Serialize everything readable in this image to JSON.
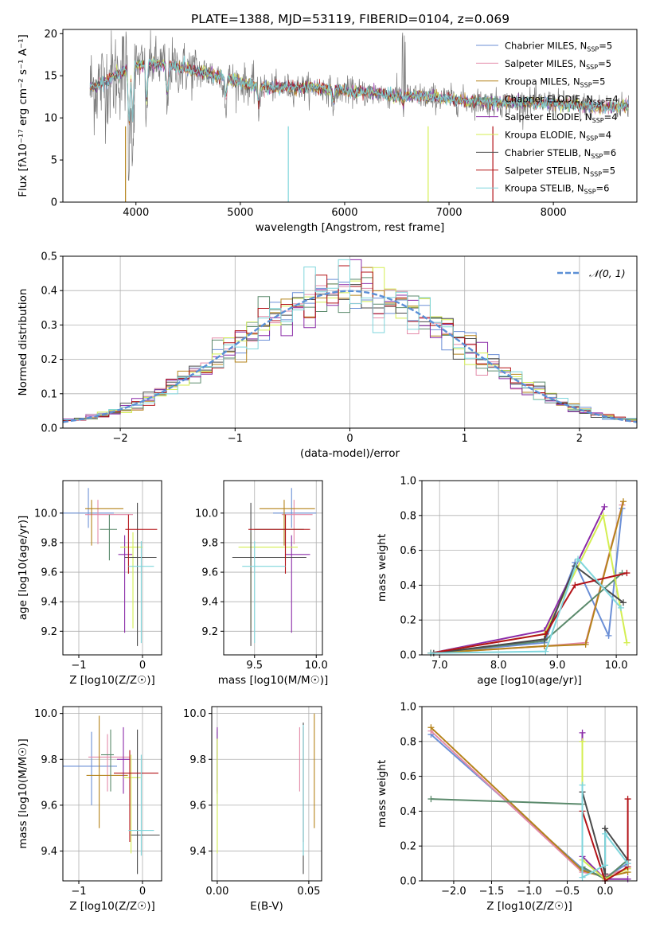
{
  "figure": {
    "title": "PLATE=1388, MJD=53119, FIBERID=0104, z=0.069"
  },
  "legend_models": [
    {
      "label": "Chabrier MILES, N",
      "n": "5",
      "color": "#6b8fd6"
    },
    {
      "label": "Salpeter MILES, N",
      "n": "5",
      "color": "#e38aa8"
    },
    {
      "label": "Kroupa MILES, N",
      "n": "5",
      "color": "#b5831a"
    },
    {
      "label": "Chabrier ELODIE, N",
      "n": "4",
      "color": "#5b8a6c"
    },
    {
      "label": "Salpeter ELODIE, N",
      "n": "4",
      "color": "#8b2ba8"
    },
    {
      "label": "Kroupa ELODIE, N",
      "n": "4",
      "color": "#d4ee52"
    },
    {
      "label": "Chabrier STELIB, N",
      "n": "6",
      "color": "#4a4a4a"
    },
    {
      "label": "Salpeter STELIB, N",
      "n": "5",
      "color": "#b31217"
    },
    {
      "label": "Kroupa STELIB, N",
      "n": "6",
      "color": "#7fd6dc"
    }
  ],
  "legend_subscript": "SSP",
  "normal_legend": "𝒩(0, 1)",
  "chart_data": [
    {
      "id": "spectrum",
      "type": "line",
      "title": "PLATE=1388, MJD=53119, FIBERID=0104, z=0.069",
      "xlabel": "wavelength [Angstrom, rest frame]",
      "ylabel": "Flux [fλ10⁻¹⁷ erg cm⁻² s⁻¹ A⁻¹]",
      "xlim": [
        3300,
        8800
      ],
      "ylim": [
        0,
        20.5
      ],
      "xticks": [
        4000,
        5000,
        6000,
        7000,
        8000
      ],
      "yticks": [
        0,
        5,
        10,
        15,
        20
      ],
      "continuum": [
        [
          3560,
          13.5
        ],
        [
          3700,
          14.2
        ],
        [
          3800,
          15
        ],
        [
          3950,
          16
        ],
        [
          4100,
          16.5
        ],
        [
          4300,
          16.2
        ],
        [
          4500,
          15.8
        ],
        [
          4700,
          15.3
        ],
        [
          4900,
          14.6
        ],
        [
          5100,
          13.9
        ],
        [
          5300,
          13.6
        ],
        [
          5500,
          13.6
        ],
        [
          5700,
          13.6
        ],
        [
          5900,
          13.3
        ],
        [
          6100,
          13.1
        ],
        [
          6300,
          12.9
        ],
        [
          6500,
          12.7
        ],
        [
          6700,
          12.6
        ],
        [
          6900,
          12.4
        ],
        [
          7100,
          12.1
        ],
        [
          7300,
          11.9
        ],
        [
          7500,
          11.7
        ],
        [
          7700,
          11.8
        ],
        [
          7900,
          11.8
        ],
        [
          8100,
          11.6
        ],
        [
          8300,
          11.4
        ],
        [
          8500,
          11.3
        ],
        [
          8700,
          11.4
        ]
      ],
      "absorption_features": [
        [
          3934,
          4.5
        ],
        [
          3969,
          6
        ],
        [
          4102,
          9
        ],
        [
          4300,
          10.5
        ],
        [
          4861,
          11
        ],
        [
          5175,
          10.5
        ],
        [
          5893,
          11
        ],
        [
          6563,
          11
        ]
      ],
      "spikes": [
        [
          3900,
          0
        ],
        [
          5460,
          0
        ],
        [
          6800,
          0
        ],
        [
          7420,
          0
        ]
      ]
    },
    {
      "id": "residuals",
      "type": "step",
      "xlabel": "(data-model)/error",
      "ylabel": "Normed distribution",
      "xlim": [
        -2.5,
        2.5
      ],
      "ylim": [
        0,
        0.5
      ],
      "xticks": [
        -2,
        -1,
        0,
        1,
        2
      ],
      "yticks": [
        0.0,
        0.1,
        0.2,
        0.3,
        0.4,
        0.5
      ],
      "bin_width": 0.1,
      "normal": {
        "mean": 0,
        "sigma": 1,
        "name": "𝒩(0, 1)"
      }
    },
    {
      "id": "age_vs_Z",
      "type": "errorbar",
      "xlabel": "Z [log10(Z/Z☉)]",
      "ylabel": "age  [log10(age/yr)]",
      "xlim": [
        -1.25,
        0.3
      ],
      "ylim": [
        9.04,
        10.22
      ],
      "xticks": [
        -1,
        0
      ],
      "yticks": [
        9.2,
        9.4,
        9.6,
        9.8,
        10.0
      ],
      "points": [
        {
          "model": 0,
          "x": -0.85,
          "y": 10.0,
          "xerr": [
            0.45,
            0.4
          ],
          "yerr": [
            0.1,
            0.17
          ]
        },
        {
          "model": 1,
          "x": -0.7,
          "y": 9.99,
          "xerr": [
            0.2,
            0.55
          ],
          "yerr": [
            0.2,
            0.1
          ]
        },
        {
          "model": 2,
          "x": -0.8,
          "y": 10.03,
          "xerr": [
            0.1,
            0.5
          ],
          "yerr": [
            0.25,
            0.06
          ]
        },
        {
          "model": 3,
          "x": -0.52,
          "y": 9.89,
          "xerr": [
            0.15,
            0.12
          ],
          "yerr": [
            0.21,
            0.1
          ]
        },
        {
          "model": 4,
          "x": -0.28,
          "y": 9.72,
          "xerr": [
            0.1,
            0.12
          ],
          "yerr": [
            0.53,
            0.13
          ]
        },
        {
          "model": 5,
          "x": -0.15,
          "y": 9.77,
          "xerr": [
            0.2,
            0.15
          ],
          "yerr": [
            0.55,
            0.1
          ]
        },
        {
          "model": 6,
          "x": -0.08,
          "y": 9.7,
          "xerr": [
            0.2,
            0.3
          ],
          "yerr": [
            0.6,
            0.37
          ]
        },
        {
          "model": 7,
          "x": -0.22,
          "y": 9.89,
          "xerr": [
            0.05,
            0.45
          ],
          "yerr": [
            0.3,
            0.1
          ]
        },
        {
          "model": 8,
          "x": -0.02,
          "y": 9.64,
          "xerr": [
            0.2,
            0.2
          ],
          "yerr": [
            0.52,
            0.17
          ]
        }
      ]
    },
    {
      "id": "age_vs_mass",
      "type": "errorbar",
      "xlabel": "mass [log10(M/M☉)]",
      "ylabel": "",
      "xlim": [
        9.25,
        10.05
      ],
      "ylim": [
        9.04,
        10.22
      ],
      "xticks": [
        9.5,
        10.0
      ],
      "yticks": [
        9.2,
        9.4,
        9.6,
        9.8,
        10.0
      ],
      "points": [
        {
          "model": 0,
          "x": 9.8,
          "y": 10.0,
          "xerr": [
            0.15,
            0.2
          ],
          "yerr": [
            0.1,
            0.17
          ]
        },
        {
          "model": 1,
          "x": 9.82,
          "y": 9.99,
          "xerr": [
            0.1,
            0.15
          ],
          "yerr": [
            0.2,
            0.1
          ]
        },
        {
          "model": 2,
          "x": 9.74,
          "y": 10.03,
          "xerr": [
            0.2,
            0.25
          ],
          "yerr": [
            0.25,
            0.06
          ]
        },
        {
          "model": 3,
          "x": 9.75,
          "y": 9.89,
          "xerr": [
            0.25,
            0.15
          ],
          "yerr": [
            0.21,
            0.1
          ]
        },
        {
          "model": 4,
          "x": 9.8,
          "y": 9.72,
          "xerr": [
            0.05,
            0.15
          ],
          "yerr": [
            0.53,
            0.13
          ]
        },
        {
          "model": 5,
          "x": 9.47,
          "y": 9.77,
          "xerr": [
            0.1,
            0.38
          ],
          "yerr": [
            0.55,
            0.1
          ]
        },
        {
          "model": 6,
          "x": 9.47,
          "y": 9.7,
          "xerr": [
            0.15,
            0.45
          ],
          "yerr": [
            0.6,
            0.37
          ]
        },
        {
          "model": 7,
          "x": 9.75,
          "y": 9.89,
          "xerr": [
            0.3,
            0.2
          ],
          "yerr": [
            0.3,
            0.1
          ]
        },
        {
          "model": 8,
          "x": 9.5,
          "y": 9.64,
          "xerr": [
            0.1,
            0.25
          ],
          "yerr": [
            0.52,
            0.17
          ]
        }
      ]
    },
    {
      "id": "weight_vs_age",
      "type": "line",
      "xlabel": "age  [log10(age/yr)]",
      "ylabel": "mass weight",
      "xlim": [
        6.7,
        10.35
      ],
      "ylim": [
        0,
        1.0
      ],
      "xticks": [
        7,
        8,
        9,
        10
      ],
      "yticks": [
        0.0,
        0.2,
        0.4,
        0.6,
        0.8,
        1.0
      ],
      "series": [
        {
          "model": 0,
          "x": [
            6.85,
            8.78,
            9.3,
            9.87,
            10.1
          ],
          "y": [
            0.01,
            0.07,
            0.53,
            0.11,
            0.84
          ]
        },
        {
          "model": 1,
          "x": [
            6.85,
            8.78,
            9.48,
            10.1
          ],
          "y": [
            0.01,
            0.05,
            0.07,
            0.86
          ]
        },
        {
          "model": 2,
          "x": [
            6.85,
            8.78,
            9.48,
            10.12
          ],
          "y": [
            0.01,
            0.05,
            0.06,
            0.88
          ]
        },
        {
          "model": 3,
          "x": [
            6.85,
            8.78,
            10.1
          ],
          "y": [
            0.01,
            0.08,
            0.47
          ]
        },
        {
          "model": 4,
          "x": [
            6.85,
            8.78,
            9.8
          ],
          "y": [
            0.01,
            0.14,
            0.85
          ]
        },
        {
          "model": 5,
          "x": [
            6.85,
            8.78,
            9.78,
            10.18
          ],
          "y": [
            0.01,
            0.12,
            0.8,
            0.07
          ]
        },
        {
          "model": 6,
          "x": [
            6.9,
            8.78,
            9.3,
            10.12
          ],
          "y": [
            0.01,
            0.09,
            0.51,
            0.3
          ]
        },
        {
          "model": 7,
          "x": [
            6.85,
            8.8,
            9.3,
            10.18
          ],
          "y": [
            0.01,
            0.12,
            0.4,
            0.47
          ]
        },
        {
          "model": 8,
          "x": [
            6.85,
            8.8,
            9.35,
            10.08
          ],
          "y": [
            0.01,
            0.02,
            0.55,
            0.27
          ]
        }
      ]
    },
    {
      "id": "mass_vs_Z",
      "type": "errorbar",
      "xlabel": "Z [log10(Z/Z☉)]",
      "ylabel": "mass [log10(M/M☉)]",
      "xlim": [
        -1.25,
        0.3
      ],
      "ylim": [
        9.27,
        10.03
      ],
      "xticks": [
        -1,
        0
      ],
      "yticks": [
        9.4,
        9.6,
        9.8,
        10.0
      ],
      "points": [
        {
          "model": 0,
          "x": -0.8,
          "y": 9.77,
          "xerr": [
            0.45,
            0.4
          ],
          "yerr": [
            0.17,
            0.15
          ]
        },
        {
          "model": 1,
          "x": -0.55,
          "y": 9.81,
          "xerr": [
            0.3,
            0.35
          ],
          "yerr": [
            0.15,
            0.1
          ]
        },
        {
          "model": 2,
          "x": -0.68,
          "y": 9.73,
          "xerr": [
            0.2,
            0.45
          ],
          "yerr": [
            0.23,
            0.26
          ]
        },
        {
          "model": 3,
          "x": -0.5,
          "y": 9.82,
          "xerr": [
            0.15,
            0.05
          ],
          "yerr": [
            0.16,
            0.11
          ]
        },
        {
          "model": 4,
          "x": -0.3,
          "y": 9.8,
          "xerr": [
            0.1,
            0.1
          ],
          "yerr": [
            0.15,
            0.14
          ]
        },
        {
          "model": 5,
          "x": -0.18,
          "y": 9.72,
          "xerr": [
            0.12,
            0.15
          ],
          "yerr": [
            0.33,
            0.1
          ]
        },
        {
          "model": 6,
          "x": -0.08,
          "y": 9.47,
          "xerr": [
            0.1,
            0.35
          ],
          "yerr": [
            0.17,
            0.46
          ]
        },
        {
          "model": 7,
          "x": -0.2,
          "y": 9.74,
          "xerr": [
            0.25,
            0.45
          ],
          "yerr": [
            0.3,
            0.1
          ]
        },
        {
          "model": 8,
          "x": -0.02,
          "y": 9.49,
          "xerr": [
            0.2,
            0.2
          ],
          "yerr": [
            0.11,
            0.33
          ]
        }
      ]
    },
    {
      "id": "mass_vs_ebv",
      "type": "errorbar",
      "xlabel": "E(B-V)",
      "ylabel": "",
      "xlim": [
        -0.003,
        0.057
      ],
      "ylim": [
        9.27,
        10.03
      ],
      "xticks": [
        0.0,
        0.05
      ],
      "yticks": [
        9.4,
        9.6,
        9.8,
        10.0
      ],
      "points": [
        {
          "model": 0,
          "x": 0.0,
          "y": 9.77,
          "xerr": [
            0,
            0
          ],
          "yerr": [
            0.17,
            0.15
          ]
        },
        {
          "model": 1,
          "x": 0.045,
          "y": 9.81,
          "xerr": [
            0,
            0
          ],
          "yerr": [
            0.15,
            0.13
          ]
        },
        {
          "model": 2,
          "x": 0.053,
          "y": 9.73,
          "xerr": [
            0,
            0
          ],
          "yerr": [
            0.23,
            0.27
          ]
        },
        {
          "model": 3,
          "x": 0.0,
          "y": 9.82,
          "xerr": [
            0,
            0
          ],
          "yerr": [
            0.16,
            0.11
          ]
        },
        {
          "model": 4,
          "x": 0.0,
          "y": 9.8,
          "xerr": [
            0,
            0
          ],
          "yerr": [
            0.15,
            0.14
          ]
        },
        {
          "model": 5,
          "x": 0.0,
          "y": 9.72,
          "xerr": [
            0,
            0
          ],
          "yerr": [
            0.33,
            0.17
          ]
        },
        {
          "model": 6,
          "x": 0.047,
          "y": 9.47,
          "xerr": [
            0,
            0
          ],
          "yerr": [
            0.17,
            0.49
          ]
        },
        {
          "model": 7,
          "x": 0.047,
          "y": 9.74,
          "xerr": [
            0,
            0
          ],
          "yerr": [
            0.3,
            0.2
          ]
        },
        {
          "model": 8,
          "x": 0.047,
          "y": 9.49,
          "xerr": [
            0,
            0
          ],
          "yerr": [
            0.11,
            0.46
          ]
        }
      ]
    },
    {
      "id": "weight_vs_Z",
      "type": "line",
      "xlabel": "Z [log10(Z/Z☉)]",
      "ylabel": "mass weight",
      "xlim": [
        -2.42,
        0.42
      ],
      "ylim": [
        0,
        1.0
      ],
      "xticks": [
        -2.0,
        -1.5,
        -1.0,
        -0.5,
        0.0
      ],
      "yticks": [
        0.0,
        0.2,
        0.4,
        0.6,
        0.8,
        1.0
      ],
      "series": [
        {
          "model": 0,
          "x": [
            -2.3,
            -0.3,
            0.0,
            0.3
          ],
          "y": [
            0.84,
            0.07,
            0.02,
            0.1
          ]
        },
        {
          "model": 1,
          "x": [
            -2.3,
            -0.3,
            0.0,
            0.3
          ],
          "y": [
            0.86,
            0.05,
            0.03,
            0.07
          ]
        },
        {
          "model": 2,
          "x": [
            -2.3,
            -0.3,
            0.0,
            0.3
          ],
          "y": [
            0.88,
            0.06,
            0.02,
            0.05
          ]
        },
        {
          "model": 3,
          "x": [
            -2.3,
            -0.3,
            -0.3,
            0.0,
            0.3
          ],
          "y": [
            0.47,
            0.44,
            0.08,
            0.01,
            0.12
          ]
        },
        {
          "model": 4,
          "x": [
            -0.3,
            -0.3,
            0.0,
            0.3
          ],
          "y": [
            0.85,
            0.14,
            0.01,
            0.01
          ]
        },
        {
          "model": 5,
          "x": [
            -0.3,
            -0.3,
            0.0,
            0.3
          ],
          "y": [
            0.8,
            0.12,
            0.01,
            0.07
          ]
        },
        {
          "model": 6,
          "x": [
            -0.3,
            0.0,
            0.0,
            0.3
          ],
          "y": [
            0.51,
            0.04,
            0.3,
            0.12
          ]
        },
        {
          "model": 7,
          "x": [
            -0.3,
            0.0,
            0.3,
            0.3
          ],
          "y": [
            0.4,
            0.0,
            0.08,
            0.47
          ]
        },
        {
          "model": 8,
          "x": [
            -0.3,
            -0.3,
            0.0,
            0.0,
            0.3
          ],
          "y": [
            0.55,
            0.02,
            0.09,
            0.27,
            0.1
          ]
        }
      ]
    }
  ]
}
